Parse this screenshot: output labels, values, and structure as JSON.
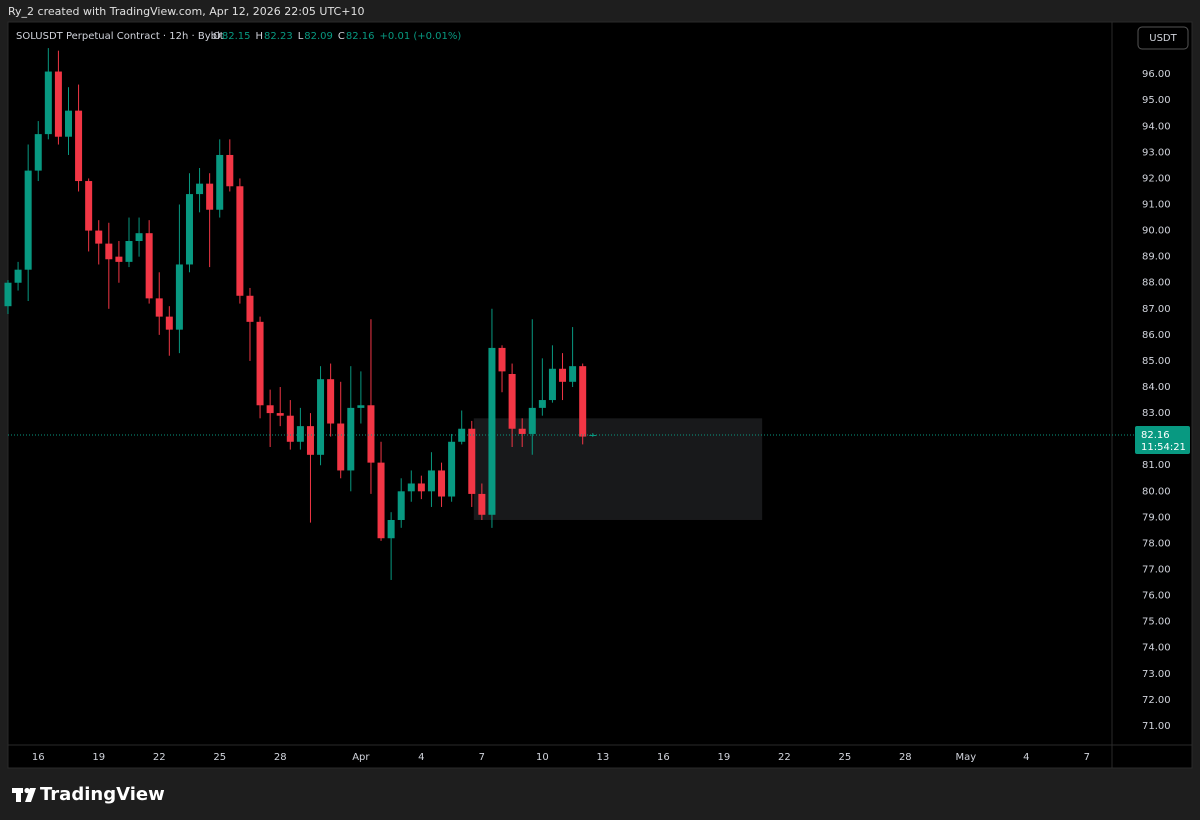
{
  "header": {
    "caption": "Ry_2 created with TradingView.com, Apr 12, 2026 22:05 UTC+10"
  },
  "chart_data": {
    "type": "candlestick",
    "symbol": "SOLUSDT Perpetual Contract · 12h · Bybit",
    "ohlc_labels": [
      "O",
      "H",
      "L",
      "C"
    ],
    "change": "+0.01 (+0.01%)",
    "currency": "USDT",
    "countdown": "11:54:21",
    "up_color": "#089981",
    "down_color": "#f23645",
    "grid": false,
    "x": [
      14.5,
      15,
      15.5,
      16,
      16.5,
      17,
      17.5,
      18,
      18.5,
      19,
      19.5,
      20,
      20.5,
      21,
      21.5,
      22,
      22.5,
      23,
      23.5,
      24,
      24.5,
      25,
      25.5,
      26,
      26.5,
      27,
      27.5,
      28,
      28.5,
      29,
      29.5,
      30,
      30.5,
      31,
      31.5,
      32,
      32.5,
      33,
      33.5,
      34,
      34.5,
      35,
      35.5,
      36,
      36.5,
      37,
      37.5,
      38,
      38.5,
      39,
      39.5,
      40,
      40.5,
      41,
      41.5,
      42,
      42.5,
      43,
      43.5
    ],
    "open": [
      87.1,
      88.0,
      88.5,
      92.3,
      93.7,
      96.1,
      93.6,
      94.6,
      91.9,
      90.0,
      89.5,
      89.0,
      88.8,
      89.6,
      89.9,
      87.4,
      86.7,
      86.2,
      88.7,
      91.4,
      91.8,
      90.8,
      92.9,
      91.7,
      87.5,
      86.5,
      83.3,
      83.0,
      82.9,
      81.9,
      82.5,
      81.4,
      84.3,
      82.6,
      80.8,
      83.2,
      83.3,
      81.1,
      78.2,
      78.9,
      80.0,
      80.3,
      80.0,
      80.8,
      79.8,
      81.9,
      82.4,
      79.9,
      79.1,
      85.5,
      84.5,
      82.4,
      82.2,
      83.2,
      83.5,
      84.7,
      84.2,
      84.8,
      82.15
    ],
    "high": [
      88.1,
      88.8,
      93.3,
      94.2,
      97.0,
      96.9,
      95.5,
      95.6,
      92.0,
      90.4,
      90.3,
      89.6,
      90.5,
      90.5,
      90.4,
      88.4,
      87.1,
      91.0,
      92.2,
      92.4,
      92.2,
      93.5,
      93.5,
      92.0,
      87.8,
      86.7,
      83.9,
      84.0,
      83.5,
      83.2,
      83.0,
      84.8,
      84.9,
      84.2,
      84.8,
      84.6,
      86.6,
      81.9,
      79.2,
      80.5,
      80.8,
      80.6,
      81.5,
      81.1,
      82.2,
      83.1,
      82.7,
      80.3,
      87.0,
      85.6,
      84.9,
      82.8,
      86.6,
      85.1,
      85.6,
      85.3,
      86.3,
      84.9,
      82.23
    ],
    "low": [
      86.8,
      87.7,
      87.3,
      91.9,
      93.5,
      93.3,
      92.9,
      91.5,
      89.2,
      88.7,
      87.0,
      88.0,
      88.6,
      89.0,
      87.2,
      86.0,
      85.2,
      85.3,
      88.4,
      90.7,
      88.6,
      90.5,
      91.5,
      87.2,
      85.0,
      82.8,
      81.7,
      82.5,
      81.6,
      81.6,
      78.8,
      81.0,
      82.1,
      80.5,
      80.0,
      82.6,
      79.9,
      78.1,
      76.6,
      78.6,
      79.6,
      79.7,
      79.4,
      79.4,
      79.6,
      81.8,
      79.4,
      78.9,
      78.6,
      83.8,
      81.7,
      81.7,
      81.4,
      82.9,
      83.4,
      83.5,
      84.0,
      81.8,
      82.09
    ],
    "close": [
      88.0,
      88.5,
      92.3,
      93.7,
      96.1,
      93.6,
      94.6,
      91.9,
      90.0,
      89.5,
      88.9,
      88.8,
      89.6,
      89.9,
      87.4,
      86.7,
      86.2,
      88.7,
      91.4,
      91.8,
      90.8,
      92.9,
      91.7,
      87.5,
      86.5,
      83.3,
      83.0,
      82.9,
      81.9,
      82.5,
      81.4,
      84.3,
      82.6,
      80.8,
      83.2,
      83.3,
      81.1,
      78.2,
      78.9,
      80.0,
      80.3,
      80.0,
      80.8,
      79.8,
      81.9,
      82.4,
      79.9,
      79.1,
      85.5,
      84.6,
      82.4,
      82.2,
      83.2,
      83.5,
      84.7,
      84.2,
      84.8,
      82.1,
      82.16
    ],
    "zone": {
      "x": [
        37.6,
        51.9
      ],
      "y": [
        78.9,
        82.8
      ]
    },
    "xlim": [
      14.5,
      69.25
    ],
    "ylim": [
      70.27,
      98.0
    ],
    "xticks": [
      16,
      19,
      22,
      25,
      28,
      {
        "value": 32,
        "label": "Apr"
      },
      {
        "value": 35,
        "label": "4"
      },
      {
        "value": 38,
        "label": "7"
      },
      {
        "value": 41,
        "label": "10"
      },
      {
        "value": 44,
        "label": "13"
      },
      {
        "value": 47,
        "label": "16"
      },
      {
        "value": 50,
        "label": "19"
      },
      {
        "value": 53,
        "label": "22"
      },
      {
        "value": 56,
        "label": "25"
      },
      {
        "value": 59,
        "label": "28"
      },
      {
        "value": 62,
        "label": "May"
      },
      {
        "value": 65,
        "label": "4"
      },
      {
        "value": 68,
        "label": "7"
      }
    ],
    "yticks": [
      {
        "value": 71,
        "label": "71.00"
      },
      {
        "value": 72,
        "label": "72.00"
      },
      {
        "value": 73,
        "label": "73.00"
      },
      {
        "value": 74,
        "label": "74.00"
      },
      {
        "value": 75,
        "label": "75.00"
      },
      {
        "value": 76,
        "label": "76.00"
      },
      {
        "value": 77,
        "label": "77.00"
      },
      {
        "value": 78,
        "label": "78.00"
      },
      {
        "value": 79,
        "label": "79.00"
      },
      {
        "value": 80,
        "label": "80.00"
      },
      {
        "value": 81,
        "label": "81.00"
      },
      {
        "value": 82,
        "label": "82.00"
      },
      {
        "value": 83,
        "label": "83.00"
      },
      {
        "value": 84,
        "label": "84.00"
      },
      {
        "value": 85,
        "label": "85.00"
      },
      {
        "value": 86,
        "label": "86.00"
      },
      {
        "value": 87,
        "label": "87.00"
      },
      {
        "value": 88,
        "label": "88.00"
      },
      {
        "value": 89,
        "label": "89.00"
      },
      {
        "value": 90,
        "label": "90.00"
      },
      {
        "value": 91,
        "label": "91.00"
      },
      {
        "value": 92,
        "label": "92.00"
      },
      {
        "value": 93,
        "label": "93.00"
      },
      {
        "value": 94,
        "label": "94.00"
      },
      {
        "value": 95,
        "label": "95.00"
      },
      {
        "value": 96,
        "label": "96.00"
      }
    ]
  },
  "footer": {
    "brand": "TradingView"
  }
}
